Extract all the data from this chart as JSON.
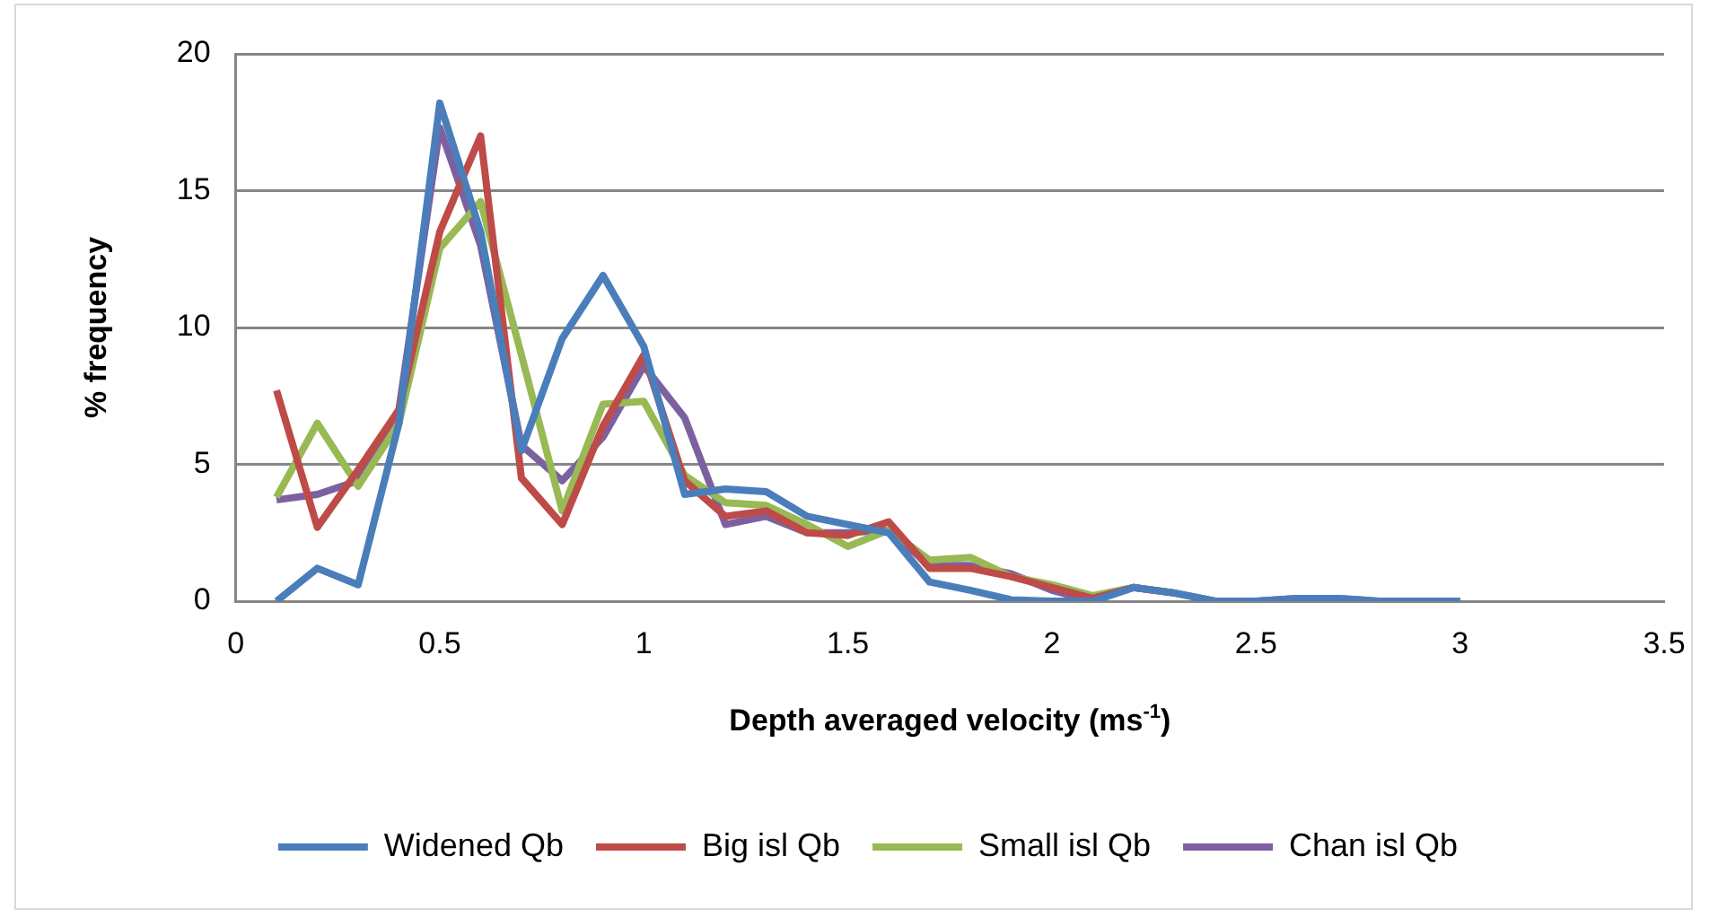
{
  "chart_data": {
    "type": "line",
    "xlabel": "Depth averaged velocity (ms$^{-1}$)",
    "ylabel": "% frequency",
    "x": [
      0.1,
      0.2,
      0.3,
      0.4,
      0.5,
      0.6,
      0.7,
      0.8,
      0.9,
      1.0,
      1.1,
      1.2,
      1.3,
      1.4,
      1.5,
      1.6,
      1.7,
      1.8,
      1.9,
      2.0,
      2.1,
      2.2,
      2.3,
      2.4,
      2.5,
      2.6,
      2.7,
      2.8,
      2.9,
      3.0
    ],
    "series": [
      {
        "name": "Widened Qb",
        "color": "#4a7ebb",
        "values": [
          0,
          1.2,
          0.6,
          6.5,
          18.2,
          13.5,
          5.5,
          9.6,
          11.9,
          9.3,
          3.9,
          4.1,
          4.0,
          3.1,
          2.8,
          2.5,
          0.7,
          0.4,
          0.05,
          0,
          0,
          0.5,
          0.3,
          0,
          0,
          0.1,
          0.1,
          0,
          0,
          0
        ]
      },
      {
        "name": "Big isl Qb",
        "color": "#be4b48",
        "values": [
          7.7,
          2.7,
          4.8,
          7.0,
          13.5,
          17.0,
          4.5,
          2.8,
          6.4,
          9.0,
          4.4,
          3.1,
          3.3,
          2.5,
          2.4,
          2.9,
          1.2,
          1.2,
          0.9,
          0.5,
          0.1,
          0.5,
          0.3,
          null,
          null,
          null,
          null,
          null,
          null,
          null
        ]
      },
      {
        "name": "Small isl Qb",
        "color": "#98b954",
        "values": [
          3.8,
          6.5,
          4.2,
          6.5,
          12.9,
          14.6,
          9.0,
          3.3,
          7.2,
          7.3,
          4.6,
          3.6,
          3.5,
          2.8,
          2.0,
          2.6,
          1.5,
          1.6,
          0.9,
          0.6,
          0.2,
          0.5,
          0.3,
          null,
          null,
          null,
          null,
          null,
          null,
          null
        ]
      },
      {
        "name": "Chan isl Qb",
        "color": "#7d60a0",
        "values": [
          3.7,
          3.9,
          4.4,
          7.0,
          17.3,
          13.0,
          5.7,
          4.4,
          6.0,
          8.6,
          6.7,
          2.8,
          3.1,
          2.5,
          2.5,
          2.6,
          1.3,
          1.3,
          1.0,
          0.4,
          0,
          0.5,
          0.3,
          0,
          0,
          0.1,
          0.1,
          0,
          0,
          0
        ]
      }
    ],
    "xlim": [
      0,
      3.5
    ],
    "xticks": [
      0,
      0.5,
      1,
      1.5,
      2,
      2.5,
      3,
      3.5
    ],
    "ylim": [
      0,
      20
    ],
    "yticks": [
      0,
      5,
      10,
      15,
      20
    ],
    "grid": "y",
    "legend": "bottom",
    "marker": "none",
    "line_style": "solid"
  }
}
